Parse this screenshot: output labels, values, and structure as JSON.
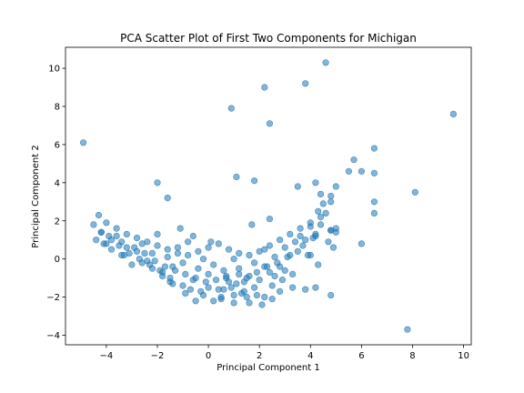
{
  "chart_data": {
    "type": "scatter",
    "title": "PCA Scatter Plot of First Two Components for Michigan",
    "xlabel": "Principal Component 1",
    "ylabel": "Principal Component 2",
    "xlim": [
      -5.6,
      10.3
    ],
    "ylim": [
      -4.5,
      11.1
    ],
    "xticks": [
      -4,
      -2,
      0,
      2,
      4,
      6,
      8,
      10
    ],
    "yticks": [
      -4,
      -2,
      0,
      2,
      4,
      6,
      8,
      10
    ],
    "grid": false,
    "marker_color": "#1f77b4",
    "marker_alpha": 0.55,
    "series": [
      {
        "x": [
          -4.9,
          4.6,
          2.2,
          3.8,
          0.9,
          2.4,
          9.6,
          6.5,
          5.7,
          6.0,
          5.5,
          6.5,
          8.1,
          6.5,
          6.5,
          6.0,
          5.0,
          4.8,
          4.4,
          4.5,
          4.3,
          4.2,
          3.5,
          1.1,
          1.8,
          -2.0,
          -1.6,
          4.8,
          4.2,
          4.0,
          7.8,
          4.8,
          4.2,
          3.8,
          3.3,
          2.8
        ],
        "y": [
          6.1,
          10.3,
          9.0,
          9.2,
          7.9,
          7.1,
          7.6,
          5.8,
          5.2,
          4.6,
          4.6,
          4.5,
          3.5,
          3.0,
          2.4,
          0.8,
          3.8,
          3.3,
          3.4,
          2.9,
          2.5,
          4.0,
          3.8,
          4.3,
          4.1,
          4.0,
          3.2,
          1.5,
          1.2,
          0.2,
          -3.7,
          -1.9,
          -1.5,
          -1.6,
          -1.5,
          -1.7
        ]
      },
      {
        "x": [
          -4.3,
          -4.0,
          -3.6,
          -3.2,
          -2.8,
          -2.4,
          -2.0,
          -1.6,
          -1.2,
          -0.8,
          -0.4,
          0.0,
          0.4,
          0.8,
          1.2,
          1.6,
          2.0,
          2.4,
          2.8,
          3.2,
          3.6,
          4.0,
          4.4,
          4.8,
          -3.9,
          -3.4,
          -2.9,
          -2.5,
          -2.1,
          -1.7,
          -1.3,
          -0.9,
          -0.5,
          -0.1,
          0.3,
          0.7,
          1.1,
          1.5,
          1.9,
          2.3,
          2.7,
          3.1,
          3.5,
          3.9,
          4.3,
          4.7,
          5.0,
          4.9,
          4.1,
          3.7,
          3.0,
          2.5,
          2.2,
          1.6,
          1.3,
          0.9,
          0.5,
          -0.3,
          -1.0,
          -1.5,
          -1.9,
          -2.3,
          -2.7,
          -3.1,
          -3.5,
          -3.8,
          -4.2,
          -4.5,
          -4.1,
          -3.3,
          -2.6,
          -2.2,
          -1.8,
          -1.4,
          -0.7,
          -0.2,
          0.2,
          0.6,
          1.0,
          1.4,
          1.8,
          2.1,
          2.6,
          2.9,
          3.3,
          0.1,
          -0.6,
          -1.1,
          1.7,
          2.4
        ],
        "y": [
          2.3,
          1.9,
          1.6,
          1.3,
          1.1,
          0.9,
          0.7,
          0.5,
          0.3,
          0.2,
          0.4,
          0.6,
          0.8,
          0.5,
          0.3,
          0.2,
          0.4,
          0.7,
          1.0,
          1.3,
          1.6,
          1.9,
          2.2,
          1.5,
          1.2,
          0.9,
          0.6,
          0.3,
          -0.1,
          -0.4,
          -0.6,
          -0.8,
          -1.0,
          -1.2,
          -1.1,
          -0.9,
          -1.3,
          -1.0,
          -0.7,
          -0.4,
          -0.2,
          0.1,
          0.4,
          0.2,
          -0.3,
          0.9,
          1.4,
          0.6,
          1.1,
          0.7,
          -0.6,
          -1.4,
          -2.0,
          -2.3,
          -1.8,
          -1.5,
          -2.1,
          -1.7,
          -1.4,
          -1.0,
          -0.6,
          -0.3,
          0.0,
          0.3,
          0.7,
          1.0,
          1.4,
          1.8,
          0.8,
          0.2,
          -0.2,
          -0.5,
          -0.9,
          -1.3,
          -1.6,
          -1.9,
          -2.2,
          -1.6,
          -1.9,
          -1.2,
          -1.5,
          -2.4,
          -0.9,
          -1.1,
          -0.8,
          0.9,
          1.2,
          1.6,
          1.8,
          2.1
        ]
      },
      {
        "x": [
          -4.4,
          -4.2,
          -4.0,
          -3.8,
          -3.6,
          -3.4,
          -3.2,
          -3.0,
          -2.8,
          -2.6,
          -2.4,
          -2.2,
          -2.0,
          -1.8,
          -1.6,
          -1.4,
          -1.2,
          -1.0,
          -0.8,
          -0.6,
          -0.4,
          -0.2,
          0.0,
          0.2,
          0.4,
          0.6,
          0.8,
          1.0,
          1.2,
          1.4,
          1.6,
          1.8,
          2.0,
          2.2,
          2.4,
          2.6,
          2.8,
          3.0,
          3.2,
          3.4,
          3.6,
          3.8,
          4.0,
          4.2,
          4.4,
          4.6,
          4.8,
          5.0,
          1.5,
          0.5,
          -0.5,
          -1.5,
          1.0,
          0.0,
          2.5,
          1.9,
          0.7,
          -0.9,
          2.2,
          1.2
        ],
        "y": [
          1.0,
          1.4,
          0.8,
          0.5,
          1.2,
          0.2,
          0.6,
          -0.3,
          0.4,
          0.8,
          -0.1,
          0.3,
          1.3,
          -0.7,
          0.1,
          -0.4,
          0.6,
          -0.2,
          0.9,
          -1.1,
          -0.5,
          0.0,
          -0.8,
          -0.3,
          -1.6,
          -0.6,
          -1.2,
          0.0,
          -0.5,
          -1.7,
          -0.9,
          -0.2,
          -1.1,
          0.5,
          -0.7,
          0.1,
          -0.4,
          0.6,
          0.2,
          0.9,
          1.2,
          1.0,
          1.7,
          1.3,
          1.8,
          2.4,
          3.0,
          1.6,
          -2.0,
          -2.0,
          -2.2,
          -1.2,
          -2.3,
          -1.5,
          -2.1,
          -1.9,
          -1.0,
          -1.8,
          -0.4,
          -0.8
        ]
      }
    ]
  }
}
